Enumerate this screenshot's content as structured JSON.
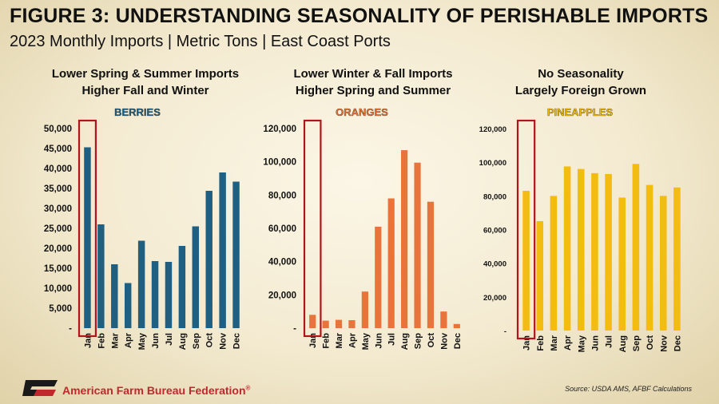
{
  "title": "FIGURE 3: UNDERSTANDING SEASONALITY OF PERISHABLE IMPORTS",
  "subtitle": "2023 Monthly Imports | Metric Tons | East Coast Ports",
  "footer": {
    "org": "American Farm Bureau Federation",
    "registered": "®",
    "logo": "FB",
    "source": "Source: USDA AMS, AFBF Calculations"
  },
  "chart_data": [
    {
      "type": "bar",
      "heading": [
        "Lower Spring & Summer Imports",
        "Higher Fall and Winter"
      ],
      "series_label": "BERRIES",
      "color": "#1f5f82",
      "label_color": "#1f5f82",
      "categories": [
        "Jan",
        "Feb",
        "Mar",
        "Apr",
        "May",
        "Jun",
        "Jul",
        "Aug",
        "Sep",
        "Oct",
        "Nov",
        "Dec"
      ],
      "values": [
        45300,
        26000,
        16000,
        11300,
        21900,
        16800,
        16600,
        20600,
        25500,
        34400,
        39000,
        36700
      ],
      "ylim": [
        0,
        50000
      ],
      "yticks": [
        0,
        5000,
        10000,
        15000,
        20000,
        25000,
        30000,
        35000,
        40000,
        45000,
        50000
      ],
      "ytick_labels": [
        "-",
        "5,000",
        "10,000",
        "15,000",
        "20,000",
        "25,000",
        "30,000",
        "35,000",
        "40,000",
        "45,000",
        "50,000"
      ],
      "highlight": "Jan"
    },
    {
      "type": "bar",
      "heading": [
        "Lower Winter & Fall Imports",
        "Higher Spring and Summer"
      ],
      "series_label": "ORANGES",
      "color": "#e8743b",
      "label_color": "#e8743b",
      "categories": [
        "Jan",
        "Feb",
        "Mar",
        "Apr",
        "May",
        "Jun",
        "Jul",
        "Aug",
        "Sep",
        "Oct",
        "Nov",
        "Dec"
      ],
      "values": [
        8000,
        4500,
        5000,
        4800,
        22000,
        61000,
        78000,
        107000,
        99500,
        76000,
        10000,
        2500
      ],
      "ylim": [
        0,
        120000
      ],
      "yticks": [
        0,
        20000,
        40000,
        60000,
        80000,
        100000,
        120000
      ],
      "ytick_labels": [
        "-",
        "20,000",
        "40,000",
        "60,000",
        "80,000",
        "100,000",
        "120,000"
      ],
      "highlight": "Jan"
    },
    {
      "type": "bar",
      "heading": [
        "No Seasonality",
        "Largely Foreign Grown"
      ],
      "series_label": "PINEAPPLES",
      "color": "#f2bd10",
      "label_color": "#f2bd10",
      "categories": [
        "Jan",
        "Feb",
        "Mar",
        "Apr",
        "May",
        "Jun",
        "Jul",
        "Aug",
        "Sep",
        "Oct",
        "Nov",
        "Dec"
      ],
      "values": [
        83000,
        65000,
        80000,
        97500,
        96000,
        93500,
        93000,
        79000,
        99000,
        86500,
        80000,
        85000
      ],
      "ylim": [
        0,
        120000
      ],
      "yticks": [
        0,
        20000,
        40000,
        60000,
        80000,
        100000,
        120000
      ],
      "ytick_labels": [
        "-",
        "20,000",
        "40,000",
        "60,000",
        "80,000",
        "100,000",
        "120,000"
      ],
      "highlight": "Jan"
    }
  ]
}
